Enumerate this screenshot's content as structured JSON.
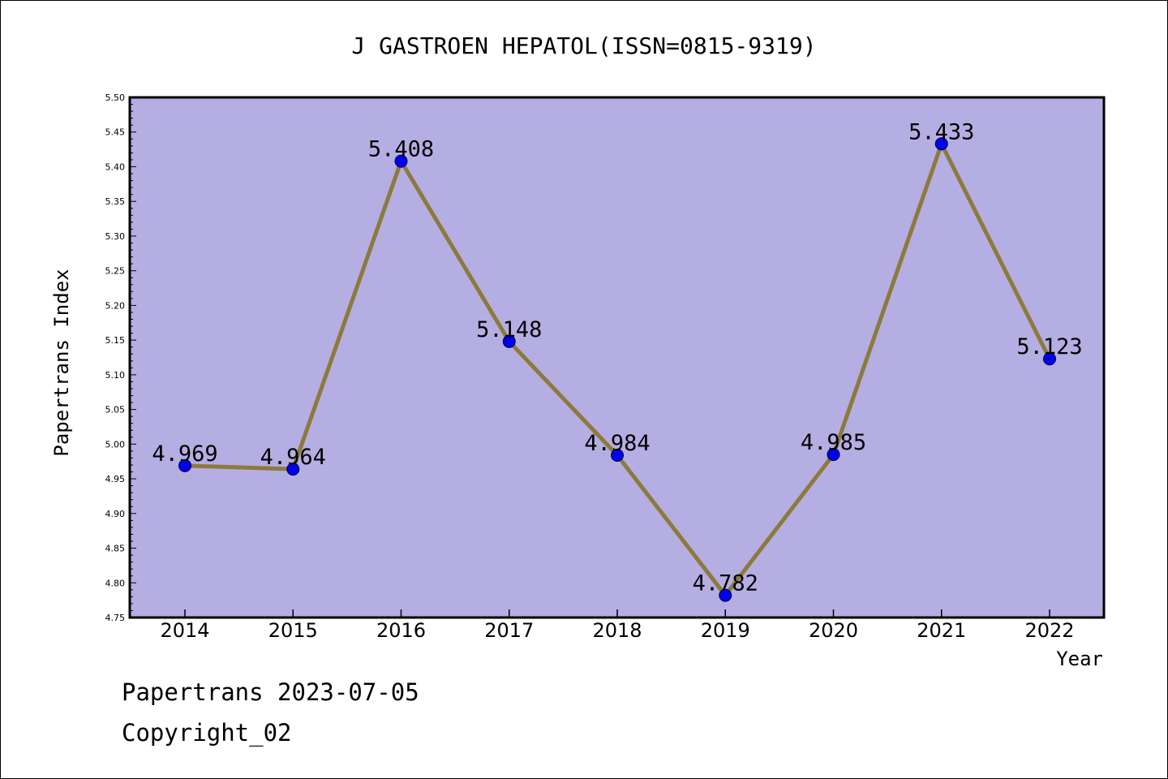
{
  "chart_data": {
    "type": "line",
    "title": "J GASTROEN HEPATOL(ISSN=0815-9319)",
    "xlabel": "Year",
    "ylabel": "Papertrans Index",
    "categories": [
      "2014",
      "2015",
      "2016",
      "2017",
      "2018",
      "2019",
      "2020",
      "2021",
      "2022"
    ],
    "series": [
      {
        "values": [
          4.969,
          4.964,
          5.408,
          5.148,
          4.984,
          4.782,
          4.985,
          5.433,
          5.123
        ],
        "data_labels": [
          "4.969",
          "4.964",
          "5.408",
          "5.148",
          "4.984",
          "4.782",
          "4.985",
          "5.433",
          "5.123"
        ],
        "line_color": "#8c7a3c",
        "marker_color": "#0000ee"
      }
    ],
    "ylim": [
      4.75,
      5.5
    ],
    "yticks": [
      "4.75",
      "4.80",
      "4.85",
      "4.90",
      "4.95",
      "5.00",
      "5.05",
      "5.10",
      "5.15",
      "5.20",
      "5.25",
      "5.30",
      "5.35",
      "5.40",
      "5.45",
      "5.50"
    ],
    "plot_background": "#b5aee2",
    "grid": false,
    "legend": "none"
  },
  "footer": {
    "line1": "Papertrans 2023-07-05",
    "line2": "Copyright_02"
  }
}
